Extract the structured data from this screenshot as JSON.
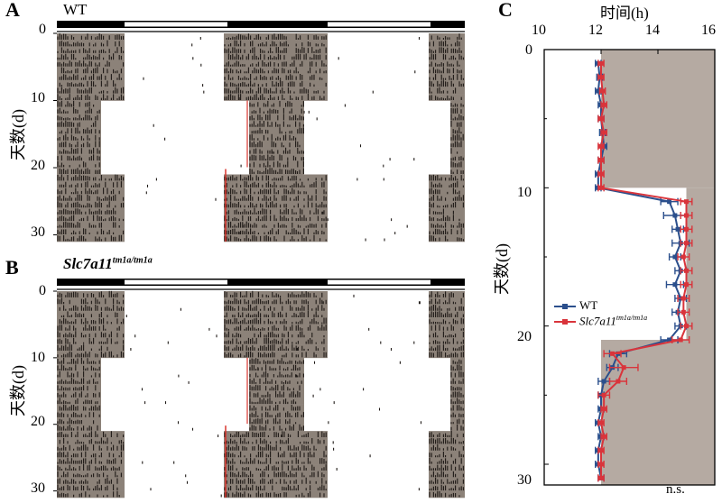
{
  "panels": {
    "A": {
      "letter": "A",
      "title": "WT",
      "ylabel": "天数(d)",
      "yticks": [
        "0",
        "10",
        "20",
        "30"
      ]
    },
    "B": {
      "letter": "B",
      "title_main": "Slc7a11",
      "title_sup": "tm1a/tm1a",
      "ylabel": "天数(d)",
      "yticks": [
        "0",
        "10",
        "20",
        "30"
      ]
    },
    "C": {
      "letter": "C",
      "annotation": "n.s."
    }
  },
  "colors": {
    "shade": "#8c8279",
    "activity": "#1f1a17",
    "light_line": "#d9352e",
    "wt": "#2b4f8c",
    "mutant": "#d9343b",
    "panel_c_shade": "#b5aaa2"
  },
  "chart_data": [
    {
      "type": "actogram",
      "id": "A",
      "title": "WT",
      "ylabel": "天数(d)",
      "ylim": [
        0,
        31
      ],
      "yticks": [
        0,
        10,
        20,
        30
      ],
      "schedule": "LD for days 0–10, constant darkness days 10–21, LD days 21–31; double-plotted 48 h"
    },
    {
      "type": "actogram",
      "id": "B",
      "title": "Slc7a11 tm1a/tm1a",
      "ylabel": "天数(d)",
      "ylim": [
        0,
        31
      ],
      "yticks": [
        0,
        10,
        20,
        30
      ],
      "schedule": "LD for days 0–10, constant darkness days 10–21, LD days 21–31; double-plotted 48 h"
    },
    {
      "type": "line",
      "id": "C",
      "xlabel": "时间(h)",
      "ylabel": "天数(d)",
      "xlim": [
        10,
        16
      ],
      "ylim": [
        31.5,
        0
      ],
      "xticks": [
        10,
        12,
        14,
        16
      ],
      "yticks": [
        0,
        10,
        20,
        30
      ],
      "legend_position": "left-middle",
      "series": [
        {
          "name": "WT",
          "days": [
            1,
            2,
            3,
            4,
            5,
            6,
            7,
            8,
            9,
            10,
            11,
            12,
            13,
            14,
            15,
            16,
            17,
            18,
            19,
            20,
            21,
            22,
            23,
            24,
            25,
            26,
            27,
            28,
            29,
            30,
            31
          ],
          "values": [
            11.9,
            11.95,
            11.9,
            12.0,
            12.0,
            12.05,
            12.1,
            12.0,
            11.9,
            11.9,
            14.4,
            14.6,
            14.7,
            14.8,
            14.6,
            14.8,
            14.6,
            14.8,
            14.7,
            14.8,
            14.4,
            12.6,
            12.4,
            12.1,
            12.0,
            12.0,
            11.9,
            12.0,
            11.9,
            11.9,
            12.0
          ],
          "errors": [
            0.1,
            0.1,
            0.1,
            0.1,
            0.1,
            0.1,
            0.1,
            0.1,
            0.1,
            0.1,
            0.3,
            0.4,
            0.2,
            0.3,
            0.2,
            0.2,
            0.3,
            0.2,
            0.2,
            0.2,
            0.3,
            0.3,
            0.2,
            0.2,
            0.1,
            0.1,
            0.1,
            0.1,
            0.1,
            0.1,
            0.1
          ]
        },
        {
          "name": "Slc7a11 tm1a/tm1a",
          "days": [
            1,
            2,
            3,
            4,
            5,
            6,
            7,
            8,
            9,
            10,
            11,
            12,
            13,
            14,
            15,
            16,
            17,
            18,
            19,
            20,
            21,
            22,
            23,
            24,
            25,
            26,
            27,
            28,
            29,
            30,
            31
          ],
          "values": [
            12.0,
            12.0,
            12.05,
            12.1,
            12.0,
            12.1,
            12.0,
            12.0,
            12.0,
            12.0,
            15.0,
            15.0,
            15.0,
            15.0,
            14.9,
            15.0,
            15.0,
            14.9,
            14.9,
            15.0,
            14.8,
            12.4,
            12.8,
            12.6,
            12.1,
            12.1,
            12.0,
            12.1,
            12.0,
            12.0,
            12.0
          ],
          "errors": [
            0.1,
            0.1,
            0.1,
            0.1,
            0.1,
            0.1,
            0.1,
            0.1,
            0.1,
            0.1,
            0.2,
            0.2,
            0.2,
            0.2,
            0.2,
            0.2,
            0.2,
            0.2,
            0.2,
            0.2,
            0.3,
            0.3,
            0.5,
            0.3,
            0.2,
            0.1,
            0.1,
            0.1,
            0.1,
            0.1,
            0.1
          ]
        }
      ],
      "shaded_regions": [
        {
          "days": [
            0,
            10
          ],
          "x_start": 12
        },
        {
          "days": [
            10,
            21
          ],
          "x_start": 15
        },
        {
          "days": [
            21,
            31.5
          ],
          "x_start": 12
        }
      ]
    }
  ]
}
